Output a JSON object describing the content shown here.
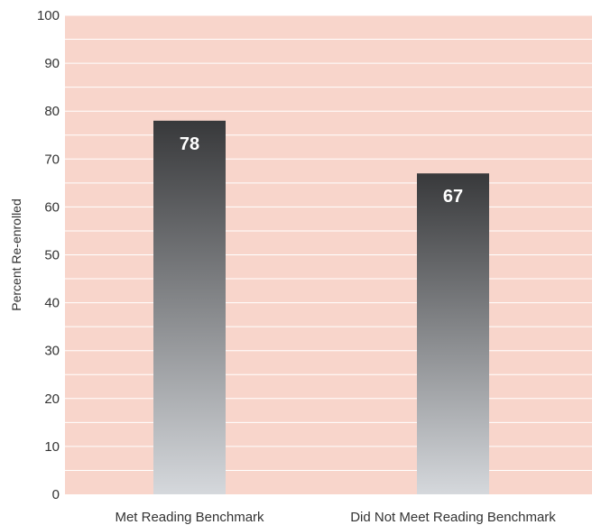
{
  "chart_data": {
    "type": "bar",
    "categories": [
      "Met Reading Benchmark",
      "Did Not Meet Reading Benchmark"
    ],
    "values": [
      78,
      67
    ],
    "data_labels": [
      "78",
      "67"
    ],
    "ylabel": "Percent Re-enrolled",
    "xlabel": "",
    "ylim": [
      0,
      100
    ],
    "y_ticks": [
      0,
      10,
      20,
      30,
      40,
      50,
      60,
      70,
      80,
      90,
      100
    ],
    "y_tick_labels": [
      "0",
      "10",
      "20",
      "30",
      "40",
      "50",
      "60",
      "70",
      "80",
      "90",
      "100"
    ],
    "minor_gridlines": true,
    "grid": true,
    "legend": "none",
    "colors": {
      "plot_background": "#f8d5cb",
      "gridline": "#ffffff",
      "bar_top": "#38393b",
      "bar_bottom": "#d5d8dc",
      "data_label": "#ffffff",
      "text": "#333333"
    }
  }
}
